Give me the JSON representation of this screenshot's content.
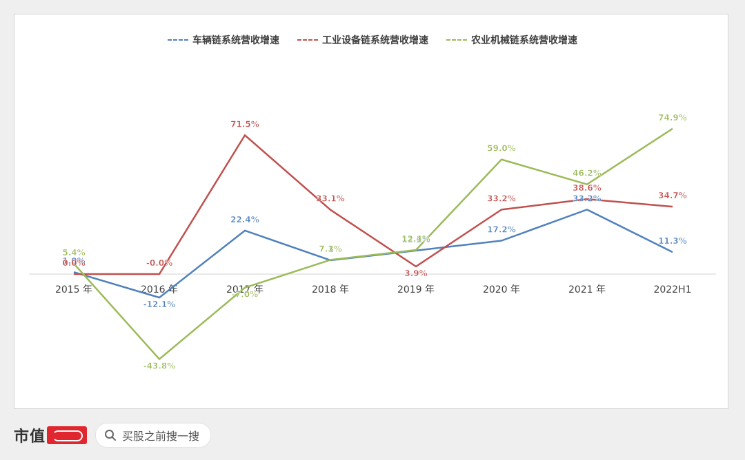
{
  "chart_data": {
    "type": "line",
    "categories": [
      "2015 年",
      "2016 年",
      "2017 年",
      "2018 年",
      "2019 年",
      "2020 年",
      "2021 年",
      "2022H1"
    ],
    "series": [
      {
        "name": "车辆链系统营收增速",
        "color": "#4f81bd",
        "values": [
          1.0,
          -12.1,
          22.4,
          7.1,
          12.1,
          17.2,
          33.2,
          11.3
        ],
        "labels": [
          "1.0%",
          "-12.1%",
          "22.4%",
          "7.1%",
          "12.1%",
          "17.2%",
          "33.2%",
          "11.3%"
        ]
      },
      {
        "name": "工业设备链系统营收增速",
        "color": "#c0504d",
        "values": [
          0.0,
          -0.0,
          71.5,
          33.1,
          3.9,
          33.2,
          38.6,
          34.7
        ],
        "labels": [
          "0.0%",
          "-0.0%",
          "71.5%",
          "33.1%",
          "3.9%",
          "33.2%",
          "38.6%",
          "34.7%"
        ]
      },
      {
        "name": "农业机械链系统营收增速",
        "color": "#9bbb59",
        "values": [
          5.4,
          -43.8,
          -7.0,
          7.3,
          12.4,
          59.0,
          46.2,
          74.9
        ],
        "labels": [
          "5.4%",
          "-43.8%",
          "-7.0%",
          "7.3%",
          "12.4%",
          "59.0%",
          "46.2%",
          "74.9%"
        ]
      }
    ],
    "xlabel": "",
    "ylabel": "",
    "ylim": [
      -60,
      100
    ],
    "legend": "top-center",
    "grid": false
  },
  "footer": {
    "brand": "市值",
    "search_placeholder": "买股之前搜一搜"
  }
}
